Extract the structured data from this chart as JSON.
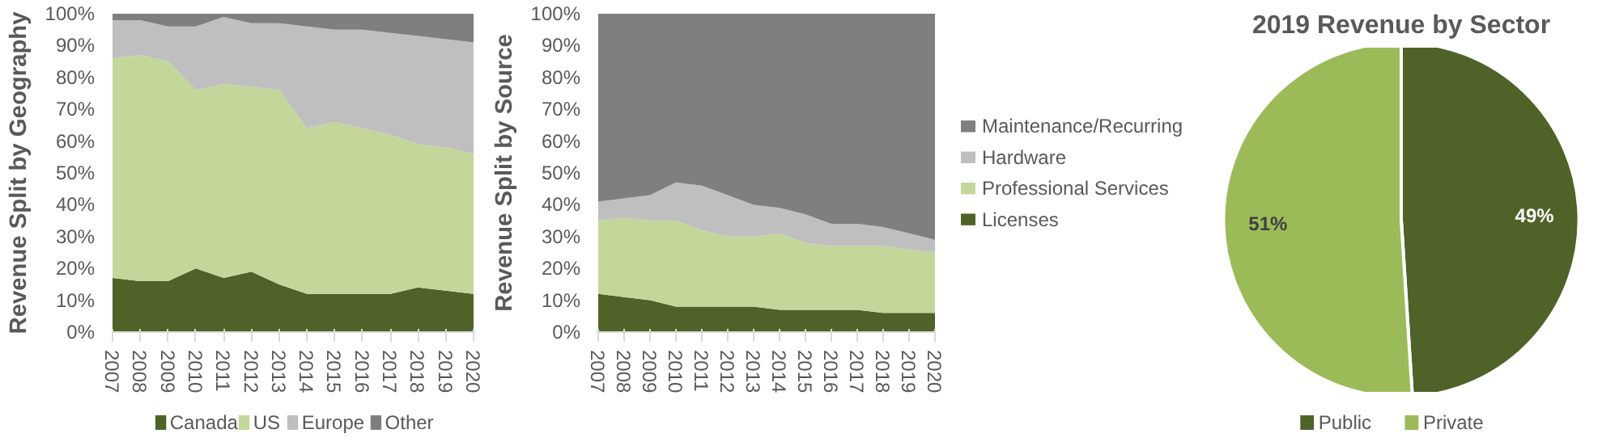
{
  "chart_data": [
    {
      "type": "area",
      "stacked": true,
      "ylabel": "Revenue Split by Geography",
      "legend": "bottom",
      "categories": [
        "2007",
        "2008",
        "2009",
        "2010",
        "2011",
        "2012",
        "2013",
        "2014",
        "2015",
        "2016",
        "2017",
        "2018",
        "2019",
        "2020"
      ],
      "ylim": [
        0,
        100
      ],
      "yticks": [
        {
          "value": 0,
          "label": "0%"
        },
        {
          "value": 10,
          "label": "10%"
        },
        {
          "value": 20,
          "label": "20%"
        },
        {
          "value": 30,
          "label": "30%"
        },
        {
          "value": 40,
          "label": "40%"
        },
        {
          "value": 50,
          "label": "50%"
        },
        {
          "value": 60,
          "label": "60%"
        },
        {
          "value": 70,
          "label": "70%"
        },
        {
          "value": 80,
          "label": "80%"
        },
        {
          "value": 90,
          "label": "90%"
        },
        {
          "value": 100,
          "label": "100%"
        }
      ],
      "series": [
        {
          "name": "Canada",
          "color": "#4f6228",
          "values": [
            17,
            16,
            16,
            20,
            17,
            19,
            15,
            12,
            12,
            12,
            12,
            14,
            13,
            12
          ]
        },
        {
          "name": "US",
          "color": "#c4d79b",
          "values": [
            69,
            71,
            69,
            56,
            61,
            58,
            61,
            52,
            54,
            52,
            50,
            45,
            45,
            44
          ]
        },
        {
          "name": "Europe",
          "color": "#bfbfbf",
          "values": [
            12,
            11,
            11,
            20,
            21,
            20,
            21,
            32,
            29,
            31,
            32,
            34,
            34,
            35
          ]
        },
        {
          "name": "Other",
          "color": "#7f7f7f",
          "values": [
            2,
            2,
            4,
            4,
            1,
            3,
            3,
            4,
            5,
            5,
            6,
            7,
            8,
            9
          ]
        }
      ]
    },
    {
      "type": "area",
      "stacked": true,
      "ylabel": "Revenue Split by Source",
      "legend": "right",
      "categories": [
        "2007",
        "2008",
        "2009",
        "2010",
        "2011",
        "2012",
        "2013",
        "2014",
        "2015",
        "2016",
        "2017",
        "2018",
        "2019",
        "2020"
      ],
      "ylim": [
        0,
        100
      ],
      "yticks": [
        {
          "value": 0,
          "label": "0%"
        },
        {
          "value": 10,
          "label": "10%"
        },
        {
          "value": 20,
          "label": "20%"
        },
        {
          "value": 30,
          "label": "30%"
        },
        {
          "value": 40,
          "label": "40%"
        },
        {
          "value": 50,
          "label": "50%"
        },
        {
          "value": 60,
          "label": "60%"
        },
        {
          "value": 70,
          "label": "70%"
        },
        {
          "value": 80,
          "label": "80%"
        },
        {
          "value": 90,
          "label": "90%"
        },
        {
          "value": 100,
          "label": "100%"
        }
      ],
      "series": [
        {
          "name": "Licenses",
          "color": "#4f6228",
          "values": [
            12,
            11,
            10,
            8,
            8,
            8,
            8,
            7,
            7,
            7,
            7,
            6,
            6,
            6
          ]
        },
        {
          "name": "Professional Services",
          "color": "#c4d79b",
          "values": [
            23,
            25,
            25,
            27,
            24,
            22,
            22,
            24,
            21,
            20,
            20,
            21,
            20,
            19
          ]
        },
        {
          "name": "Hardware",
          "color": "#bfbfbf",
          "values": [
            6,
            6,
            8,
            12,
            14,
            13,
            10,
            8,
            9,
            7,
            7,
            6,
            5,
            4
          ]
        },
        {
          "name": "Maintenance/Recurring",
          "color": "#7f7f7f",
          "values": [
            59,
            58,
            57,
            53,
            54,
            57,
            60,
            61,
            63,
            66,
            66,
            67,
            69,
            71
          ]
        }
      ]
    },
    {
      "type": "pie",
      "title": "2019 Revenue by Sector",
      "legend": "bottom",
      "categories": [
        "Public",
        "Private"
      ],
      "values": [
        49,
        51
      ],
      "colors": [
        "#4f6228",
        "#9bbb59"
      ],
      "value_labels": [
        "49%",
        "51%"
      ]
    }
  ]
}
